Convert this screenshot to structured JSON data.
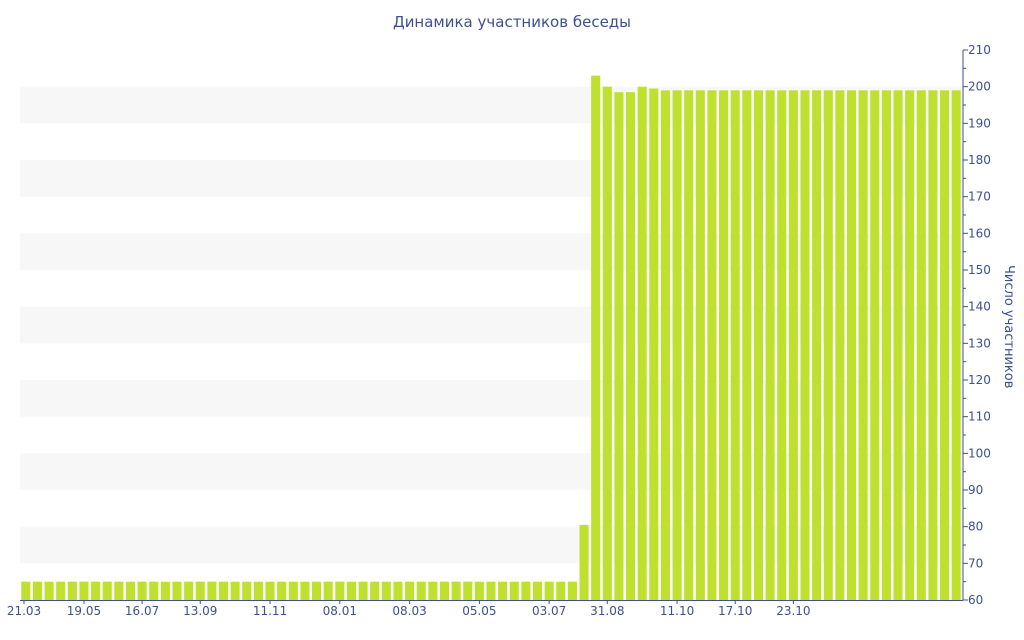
{
  "chart_data": {
    "type": "bar",
    "title": "Динамика участников беседы",
    "ylabel": "Число участников",
    "xlabel": "",
    "ylim": [
      60,
      210
    ],
    "yticks": [
      60,
      70,
      80,
      90,
      100,
      110,
      120,
      130,
      140,
      150,
      160,
      170,
      180,
      190,
      200,
      210
    ],
    "x_tick_labels": [
      {
        "label": "21.03",
        "index": 0
      },
      {
        "label": "19.05",
        "index": 5
      },
      {
        "label": "16.07",
        "index": 10
      },
      {
        "label": "13.09",
        "index": 15
      },
      {
        "label": "11.11",
        "index": 21
      },
      {
        "label": "08.01",
        "index": 27
      },
      {
        "label": "08.03",
        "index": 33
      },
      {
        "label": "05.05",
        "index": 39
      },
      {
        "label": "03.07",
        "index": 45
      },
      {
        "label": "31.08",
        "index": 50
      },
      {
        "label": "11.10",
        "index": 56
      },
      {
        "label": "17.10",
        "index": 61
      },
      {
        "label": "23.10",
        "index": 66
      }
    ],
    "grid": "alternating horizontal bands",
    "y_axis_position": "right",
    "bar_color": "#c0e030",
    "values": [
      65,
      65,
      65,
      65,
      65,
      65,
      65,
      65,
      65,
      65,
      65,
      65,
      65,
      65,
      65,
      65,
      65,
      65,
      65,
      65,
      65,
      65,
      65,
      65,
      65,
      65,
      65,
      65,
      65,
      65,
      65,
      65,
      65,
      65,
      65,
      65,
      65,
      65,
      65,
      65,
      65,
      65,
      65,
      65,
      65,
      65,
      65,
      65,
      80.5,
      203,
      200,
      198.5,
      198.5,
      200,
      199.5,
      199,
      199,
      199,
      199,
      199,
      199,
      199,
      199,
      199,
      199,
      199,
      199,
      199,
      199,
      199,
      199,
      199,
      199,
      199,
      199,
      199,
      199,
      199,
      199,
      199,
      199
    ]
  }
}
